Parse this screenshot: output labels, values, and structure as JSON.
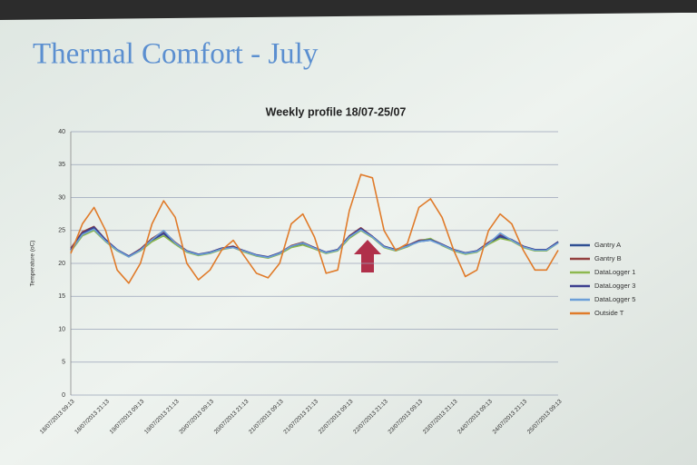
{
  "chart_data": {
    "type": "line",
    "slide_title": "Thermal Comfort - July",
    "title": "Weekly profile 18/07-25/07",
    "y_label": "Temperature (oC)",
    "categories": [
      "18/07/2013 09:13",
      null,
      null,
      "18/07/2013 21:13",
      null,
      null,
      "19/07/2013 09:13",
      null,
      null,
      "19/07/2013 21:13",
      null,
      null,
      "20/07/2013 09:13",
      null,
      null,
      "20/07/2013 21:13",
      null,
      null,
      "21/07/2013 09:13",
      null,
      null,
      "21/07/2013 21:13",
      null,
      null,
      "22/07/2013 09:13",
      null,
      null,
      "22/07/2013 21:13",
      null,
      null,
      "23/07/2013 09:13",
      null,
      null,
      "23/07/2013 21:13",
      null,
      null,
      "24/07/2013 09:13",
      null,
      null,
      "24/07/2013 21:13",
      null,
      null,
      "25/07/2013 09:13"
    ],
    "ylim": [
      0,
      40
    ],
    "yticks": [
      0,
      5,
      10,
      15,
      20,
      25,
      30,
      35,
      40
    ],
    "grid": true,
    "legend": "right",
    "series": [
      {
        "name": "Gantry A",
        "color": "#2f4f93",
        "values": [
          22,
          24.5,
          25.3,
          23.5,
          22,
          21,
          22,
          23.5,
          24.5,
          23,
          21.8,
          21.3,
          21.6,
          22.2,
          22.5,
          21.8,
          21.2,
          20.9,
          21.5,
          22.5,
          23,
          22.3,
          21.6,
          22,
          24,
          25.2,
          24,
          22.5,
          22,
          22.6,
          23.3,
          23.5,
          22.8,
          22,
          21.5,
          21.8,
          23,
          24,
          23.5,
          22.5,
          22,
          22,
          23.2
        ]
      },
      {
        "name": "Gantry B",
        "color": "#93403f",
        "values": [
          22.3,
          24.8,
          25.6,
          23.6,
          22,
          21.1,
          22.2,
          23.8,
          24.9,
          23.2,
          21.9,
          21.3,
          21.7,
          22.3,
          22.6,
          21.8,
          21.2,
          20.9,
          21.6,
          22.7,
          23.2,
          22.4,
          21.6,
          22.1,
          24.2,
          25.4,
          24.1,
          22.6,
          22,
          22.7,
          23.5,
          23.7,
          22.9,
          22,
          21.5,
          21.9,
          23.2,
          24.3,
          23.6,
          22.6,
          22,
          22,
          23.3
        ]
      },
      {
        "name": "DataLogger 1",
        "color": "#8db84f",
        "values": [
          21.8,
          24.2,
          25,
          23.3,
          21.9,
          21,
          21.9,
          23.3,
          24.2,
          22.9,
          21.7,
          21.2,
          21.5,
          22.1,
          22.4,
          21.7,
          21.1,
          20.8,
          21.4,
          22.4,
          22.8,
          22.2,
          21.5,
          21.9,
          23.8,
          25,
          23.9,
          22.4,
          21.9,
          22.5,
          23.4,
          23.8,
          22.7,
          21.9,
          21.4,
          21.7,
          22.9,
          23.8,
          23.4,
          22.4,
          21.9,
          21.9,
          23.1
        ]
      },
      {
        "name": "DataLogger 3",
        "color": "#3c3f8f",
        "values": [
          22.1,
          24.6,
          25.5,
          23.6,
          22.1,
          21.1,
          22.1,
          23.6,
          24.6,
          23.1,
          21.9,
          21.4,
          21.7,
          22.3,
          22.5,
          21.9,
          21.3,
          21,
          21.6,
          22.6,
          23.1,
          22.4,
          21.7,
          22.1,
          24.1,
          25.3,
          24.1,
          22.6,
          22.1,
          22.7,
          23.4,
          23.6,
          22.9,
          22.1,
          21.6,
          21.9,
          23.1,
          24.2,
          23.6,
          22.6,
          22.1,
          22.1,
          23.3
        ]
      },
      {
        "name": "DataLogger 5",
        "color": "#6c9fd8",
        "values": [
          21.9,
          24.4,
          25.2,
          23.4,
          22,
          21,
          22,
          23.6,
          25,
          23.1,
          21.8,
          21.3,
          21.6,
          22.2,
          22.4,
          21.8,
          21.2,
          20.9,
          21.5,
          22.6,
          23.1,
          22.3,
          21.6,
          22,
          24,
          25.1,
          24,
          22.5,
          22,
          22.6,
          23.3,
          23.5,
          22.8,
          22,
          21.5,
          21.8,
          23,
          24.6,
          23.5,
          22.5,
          22,
          22,
          23.1
        ]
      },
      {
        "name": "Outside T",
        "color": "#e07b2a",
        "values": [
          21.5,
          26,
          28.5,
          25,
          19,
          17,
          20,
          26,
          29.5,
          27,
          20,
          17.5,
          19,
          22,
          23.5,
          21,
          18.5,
          17.8,
          20,
          26,
          27.5,
          24,
          18.5,
          19,
          28,
          33.5,
          33,
          25,
          22,
          23,
          28.5,
          29.8,
          27,
          22,
          18,
          19,
          25,
          27.5,
          26,
          22,
          19,
          19,
          22
        ]
      }
    ]
  }
}
